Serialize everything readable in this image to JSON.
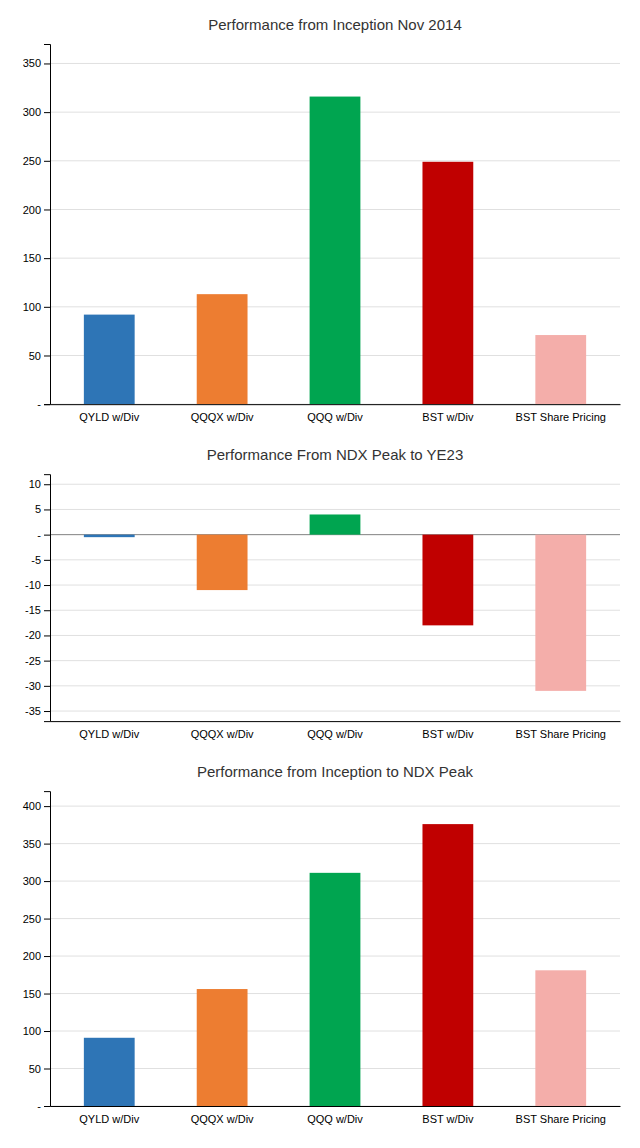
{
  "chart_data": [
    {
      "type": "bar",
      "title": "Performance from Inception Nov 2014",
      "categories": [
        "QYLD w/Div",
        "QQQX w/Div",
        "QQQ w/Div",
        "BST w/Div",
        "BST Share Pricing"
      ],
      "values": [
        92,
        113,
        316,
        249,
        71
      ],
      "colors": [
        "#2E75B6",
        "#ED7D31",
        "#00A550",
        "#C00000",
        "#F4AEAA"
      ],
      "ylim": [
        0,
        370
      ],
      "yticks": [
        {
          "value": 0,
          "label": "-"
        },
        50,
        100,
        150,
        200,
        250,
        300,
        350
      ],
      "grid": true
    },
    {
      "type": "bar",
      "title": "Performance From NDX Peak to YE23",
      "categories": [
        "QYLD w/Div",
        "QQQX w/Div",
        "QQQ w/Div",
        "BST w/Div",
        "BST Share Pricing"
      ],
      "values": [
        -0.5,
        -11,
        4,
        -18,
        -31
      ],
      "colors": [
        "#2E75B6",
        "#ED7D31",
        "#00A550",
        "#C00000",
        "#F4AEAA"
      ],
      "ylim": [
        -37,
        12
      ],
      "yticks": [
        -35,
        -30,
        -25,
        -20,
        -15,
        -10,
        -5,
        {
          "value": 0,
          "label": "-"
        },
        5,
        10
      ],
      "grid": true
    },
    {
      "type": "bar",
      "title": "Performance from Inception to NDX Peak",
      "categories": [
        "QYLD w/Div",
        "QQQX w/Div",
        "QQQ w/Div",
        "BST w/Div",
        "BST Share Pricing"
      ],
      "values": [
        91,
        156,
        311,
        376,
        181
      ],
      "colors": [
        "#2E75B6",
        "#ED7D31",
        "#00A550",
        "#C00000",
        "#F4AEAA"
      ],
      "ylim": [
        0,
        420
      ],
      "yticks": [
        {
          "value": 0,
          "label": "-"
        },
        50,
        100,
        150,
        200,
        250,
        300,
        350,
        400
      ],
      "grid": true
    }
  ]
}
